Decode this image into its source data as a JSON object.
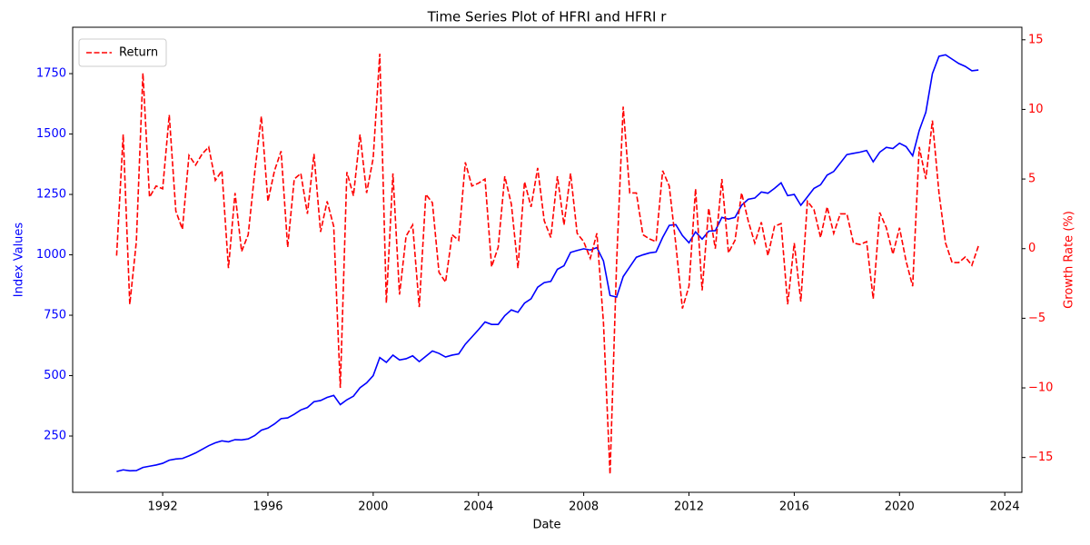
{
  "chart_data": {
    "type": "line",
    "title": "Time Series Plot of HFRI and HFRI r",
    "xlabel": "Date",
    "ylabel": "Index Values",
    "y2label": "Growth Rate (%)",
    "x": [
      1990.25,
      1990.5,
      1990.75,
      1991,
      1991.25,
      1991.5,
      1991.75,
      1992,
      1992.25,
      1992.5,
      1992.75,
      1993,
      1993.25,
      1993.5,
      1993.75,
      1994,
      1994.25,
      1994.5,
      1994.75,
      1995,
      1995.25,
      1995.5,
      1995.75,
      1996,
      1996.25,
      1996.5,
      1996.75,
      1997,
      1997.25,
      1997.5,
      1997.75,
      1998,
      1998.25,
      1998.5,
      1998.75,
      1999,
      1999.25,
      1999.5,
      1999.75,
      2000,
      2000.25,
      2000.5,
      2000.75,
      2001,
      2001.25,
      2001.5,
      2001.75,
      2002,
      2002.25,
      2002.5,
      2002.75,
      2003,
      2003.25,
      2003.5,
      2003.75,
      2004,
      2004.25,
      2004.5,
      2004.75,
      2005,
      2005.25,
      2005.5,
      2005.75,
      2006,
      2006.25,
      2006.5,
      2006.75,
      2007,
      2007.25,
      2007.5,
      2007.75,
      2008,
      2008.25,
      2008.5,
      2008.75,
      2009,
      2009.25,
      2009.5,
      2009.75,
      2010,
      2010.25,
      2010.5,
      2010.75,
      2011,
      2011.25,
      2011.5,
      2011.75,
      2012,
      2012.25,
      2012.5,
      2012.75,
      2013,
      2013.25,
      2013.5,
      2013.75,
      2014,
      2014.25,
      2014.5,
      2014.75,
      2015,
      2015.25,
      2015.5,
      2015.75,
      2016,
      2016.25,
      2016.5,
      2016.75,
      2017,
      2017.25,
      2017.5,
      2017.75,
      2018,
      2018.25,
      2018.5,
      2018.75,
      2019,
      2019.25,
      2019.5,
      2019.75,
      2020,
      2020.25,
      2020.5,
      2020.75,
      2021,
      2021.25,
      2021.5,
      2021.75,
      2022,
      2022.25,
      2022.5,
      2022.75,
      2023
    ],
    "series": [
      {
        "color": "blue",
        "style": "solid",
        "values": [
          103,
          110,
          106,
          107,
          120,
          125,
          130,
          137,
          150,
          155,
          157,
          168,
          180,
          195,
          210,
          222,
          230,
          226,
          235,
          234,
          238,
          252,
          274,
          283,
          300,
          322,
          325,
          340,
          358,
          368,
          392,
          397,
          410,
          418,
          380,
          400,
          415,
          450,
          470,
          500,
          575,
          555,
          585,
          565,
          570,
          582,
          558,
          580,
          602,
          592,
          577,
          585,
          590,
          630,
          660,
          690,
          722,
          712,
          712,
          748,
          772,
          762,
          800,
          818,
          866,
          885,
          890,
          940,
          955,
          1010,
          1018,
          1025,
          1020,
          1030,
          975,
          832,
          825,
          910,
          950,
          990,
          1000,
          1008,
          1012,
          1072,
          1122,
          1125,
          1080,
          1050,
          1095,
          1065,
          1098,
          1100,
          1155,
          1148,
          1155,
          1205,
          1230,
          1235,
          1260,
          1255,
          1275,
          1298,
          1245,
          1250,
          1205,
          1240,
          1275,
          1290,
          1330,
          1345,
          1380,
          1415,
          1420,
          1425,
          1432,
          1385,
          1425,
          1445,
          1440,
          1462,
          1448,
          1410,
          1515,
          1590,
          1750,
          1822,
          1828,
          1810,
          1792,
          1780,
          1762,
          1765
        ]
      },
      {
        "name": "Return",
        "color": "red",
        "style": "dashed",
        "axis": "y2",
        "values": [
          -0.5,
          8.2,
          -4,
          0.5,
          12.6,
          3.7,
          4.5,
          4.3,
          9.6,
          2.7,
          1.4,
          6.7,
          6,
          6.8,
          7.3,
          4.9,
          5.6,
          -1.4,
          4,
          -0.2,
          1,
          5.5,
          9.5,
          3.4,
          5.6,
          7,
          0.1,
          5,
          5.4,
          2.5,
          6.8,
          1.2,
          3.4,
          1.6,
          -10,
          5.5,
          3.8,
          8.2,
          4,
          6.5,
          14,
          -3.9,
          5.4,
          -3.3,
          0.9,
          1.7,
          -4.2,
          3.9,
          3.3,
          -1.7,
          -2.4,
          1,
          0.6,
          6.2,
          4.5,
          4.7,
          5,
          -1.3,
          0.1,
          5.2,
          3.2,
          -1.4,
          4.8,
          3,
          5.8,
          2,
          0.8,
          5.2,
          1.7,
          5.4,
          1.1,
          0.5,
          -0.7,
          1.1,
          -5.3,
          -16.2,
          -1,
          10.2,
          4,
          4,
          1,
          0.7,
          0.5,
          5.6,
          4.5,
          0.3,
          -4.3,
          -2.7,
          4.3,
          -3,
          2.9,
          0,
          5,
          -0.3,
          0.6,
          4,
          2,
          0.4,
          1.9,
          -0.5,
          1.6,
          1.8,
          -4,
          0.4,
          -3.8,
          3.4,
          2.8,
          0.8,
          3,
          1.1,
          2.5,
          2.5,
          0.4,
          0.3,
          0.5,
          -3.6,
          2.6,
          1.5,
          -0.4,
          1.5,
          -0.9,
          -2.7,
          7.3,
          5,
          9.2,
          4,
          0.4,
          -1,
          -1,
          -0.6,
          -1.2,
          0.2
        ]
      }
    ],
    "xlim": [
      1988.58,
      2024.65
    ],
    "xticks": [
      1992,
      1996,
      2000,
      2004,
      2008,
      2012,
      2016,
      2020,
      2024
    ],
    "ylim": [
      17,
      1942
    ],
    "yticks": [
      250,
      500,
      750,
      1000,
      1250,
      1500,
      1750
    ],
    "y2lim": [
      -17.5,
      15.9
    ],
    "y2ticks": [
      {
        "value": -15,
        "label": "−15"
      },
      {
        "value": -10,
        "label": "−10"
      },
      {
        "value": -5,
        "label": "−5"
      },
      0,
      5,
      10,
      15
    ],
    "legend": "upper left",
    "grid": false
  }
}
